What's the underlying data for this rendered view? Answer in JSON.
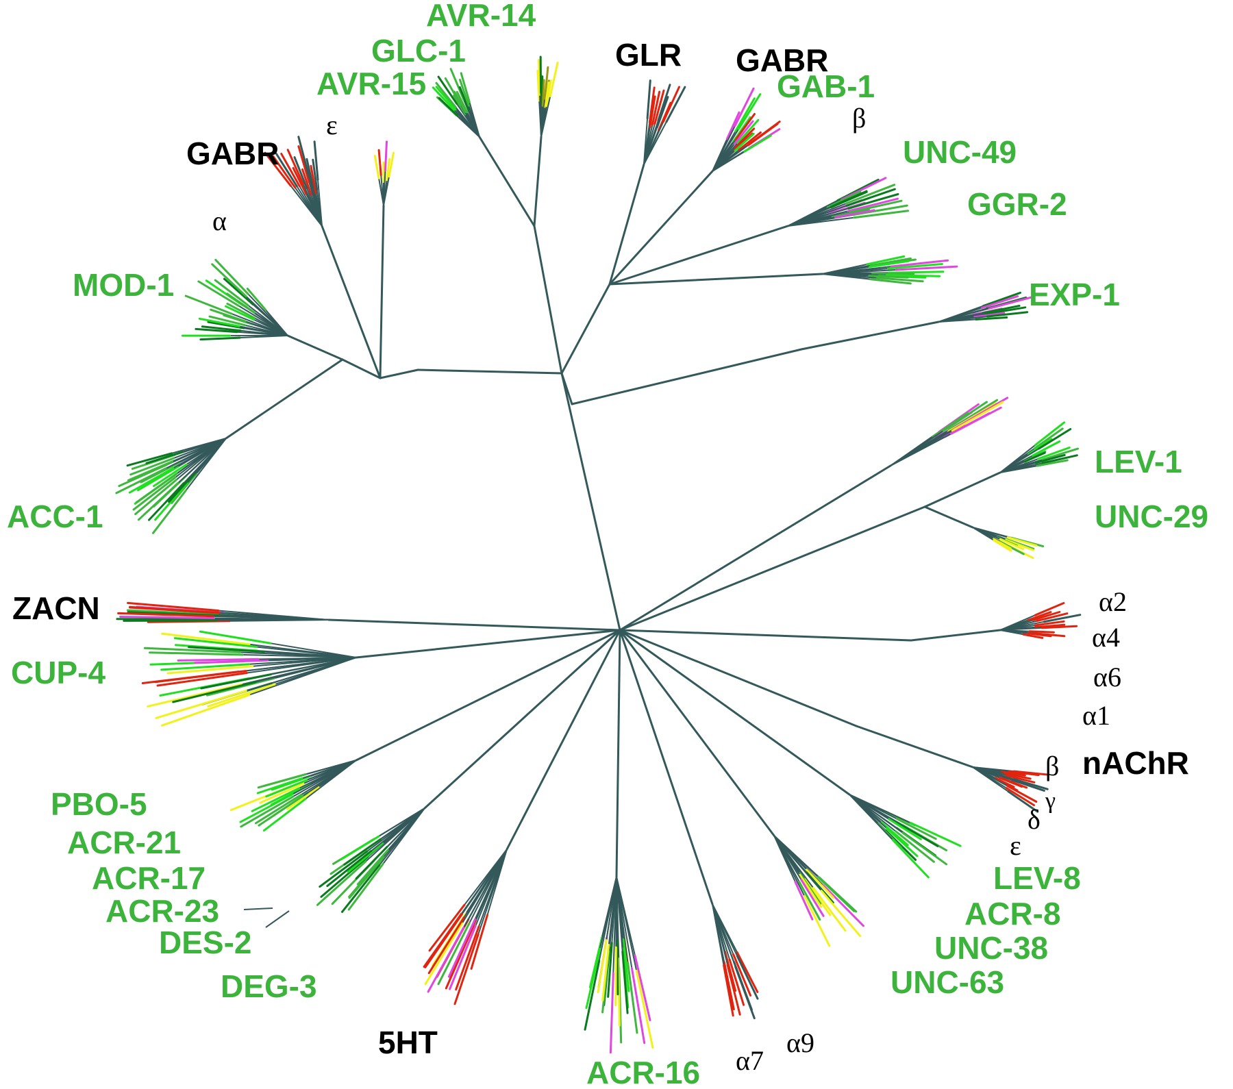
{
  "colors": {
    "trunk": "#34595a",
    "green": "#3db83d",
    "bright_green": "#1fe01f",
    "dark_green": "#0a7a1f",
    "red": "#e0240f",
    "magenta": "#e046e0",
    "yellow": "#f2f21a",
    "olive": "#9a9a10",
    "label_green": "#3cb43c",
    "label_black": "#000000"
  },
  "family_labels": [
    {
      "text": "AVR-14",
      "color": "green"
    },
    {
      "text": "GLC-1",
      "color": "green"
    },
    {
      "text": "AVR-15",
      "color": "green"
    },
    {
      "text": "GLR",
      "color": "black"
    },
    {
      "text": "GABR",
      "color": "black"
    },
    {
      "text": "GAB-1",
      "color": "green"
    },
    {
      "text": "GABR",
      "color": "black"
    },
    {
      "text": "UNC-49",
      "color": "green"
    },
    {
      "text": "GGR-2",
      "color": "green"
    },
    {
      "text": "EXP-1",
      "color": "green"
    },
    {
      "text": "MOD-1",
      "color": "green"
    },
    {
      "text": "ACC-1",
      "color": "green"
    },
    {
      "text": "LEV-1",
      "color": "green"
    },
    {
      "text": "UNC-29",
      "color": "green"
    },
    {
      "text": "ZACN",
      "color": "black"
    },
    {
      "text": "CUP-4",
      "color": "green"
    },
    {
      "text": "nAChR",
      "color": "black"
    },
    {
      "text": "PBO-5",
      "color": "green"
    },
    {
      "text": "ACR-21",
      "color": "green"
    },
    {
      "text": "ACR-17",
      "color": "green"
    },
    {
      "text": "ACR-23",
      "color": "green"
    },
    {
      "text": "DES-2",
      "color": "green"
    },
    {
      "text": "DEG-3",
      "color": "green"
    },
    {
      "text": "5HT",
      "color": "black"
    },
    {
      "text": "ACR-16",
      "color": "green"
    },
    {
      "text": "LEV-8",
      "color": "green"
    },
    {
      "text": "ACR-8",
      "color": "green"
    },
    {
      "text": "UNC-38",
      "color": "green"
    },
    {
      "text": "UNC-63",
      "color": "green"
    }
  ],
  "subunit_labels": [
    {
      "text": "ε"
    },
    {
      "text": "α"
    },
    {
      "text": "β"
    },
    {
      "text": "α2"
    },
    {
      "text": "α4"
    },
    {
      "text": "α6"
    },
    {
      "text": "α1"
    },
    {
      "text": "β"
    },
    {
      "text": "γ"
    },
    {
      "text": "δ"
    },
    {
      "text": "ε"
    },
    {
      "text": "α7"
    },
    {
      "text": "α9"
    }
  ]
}
